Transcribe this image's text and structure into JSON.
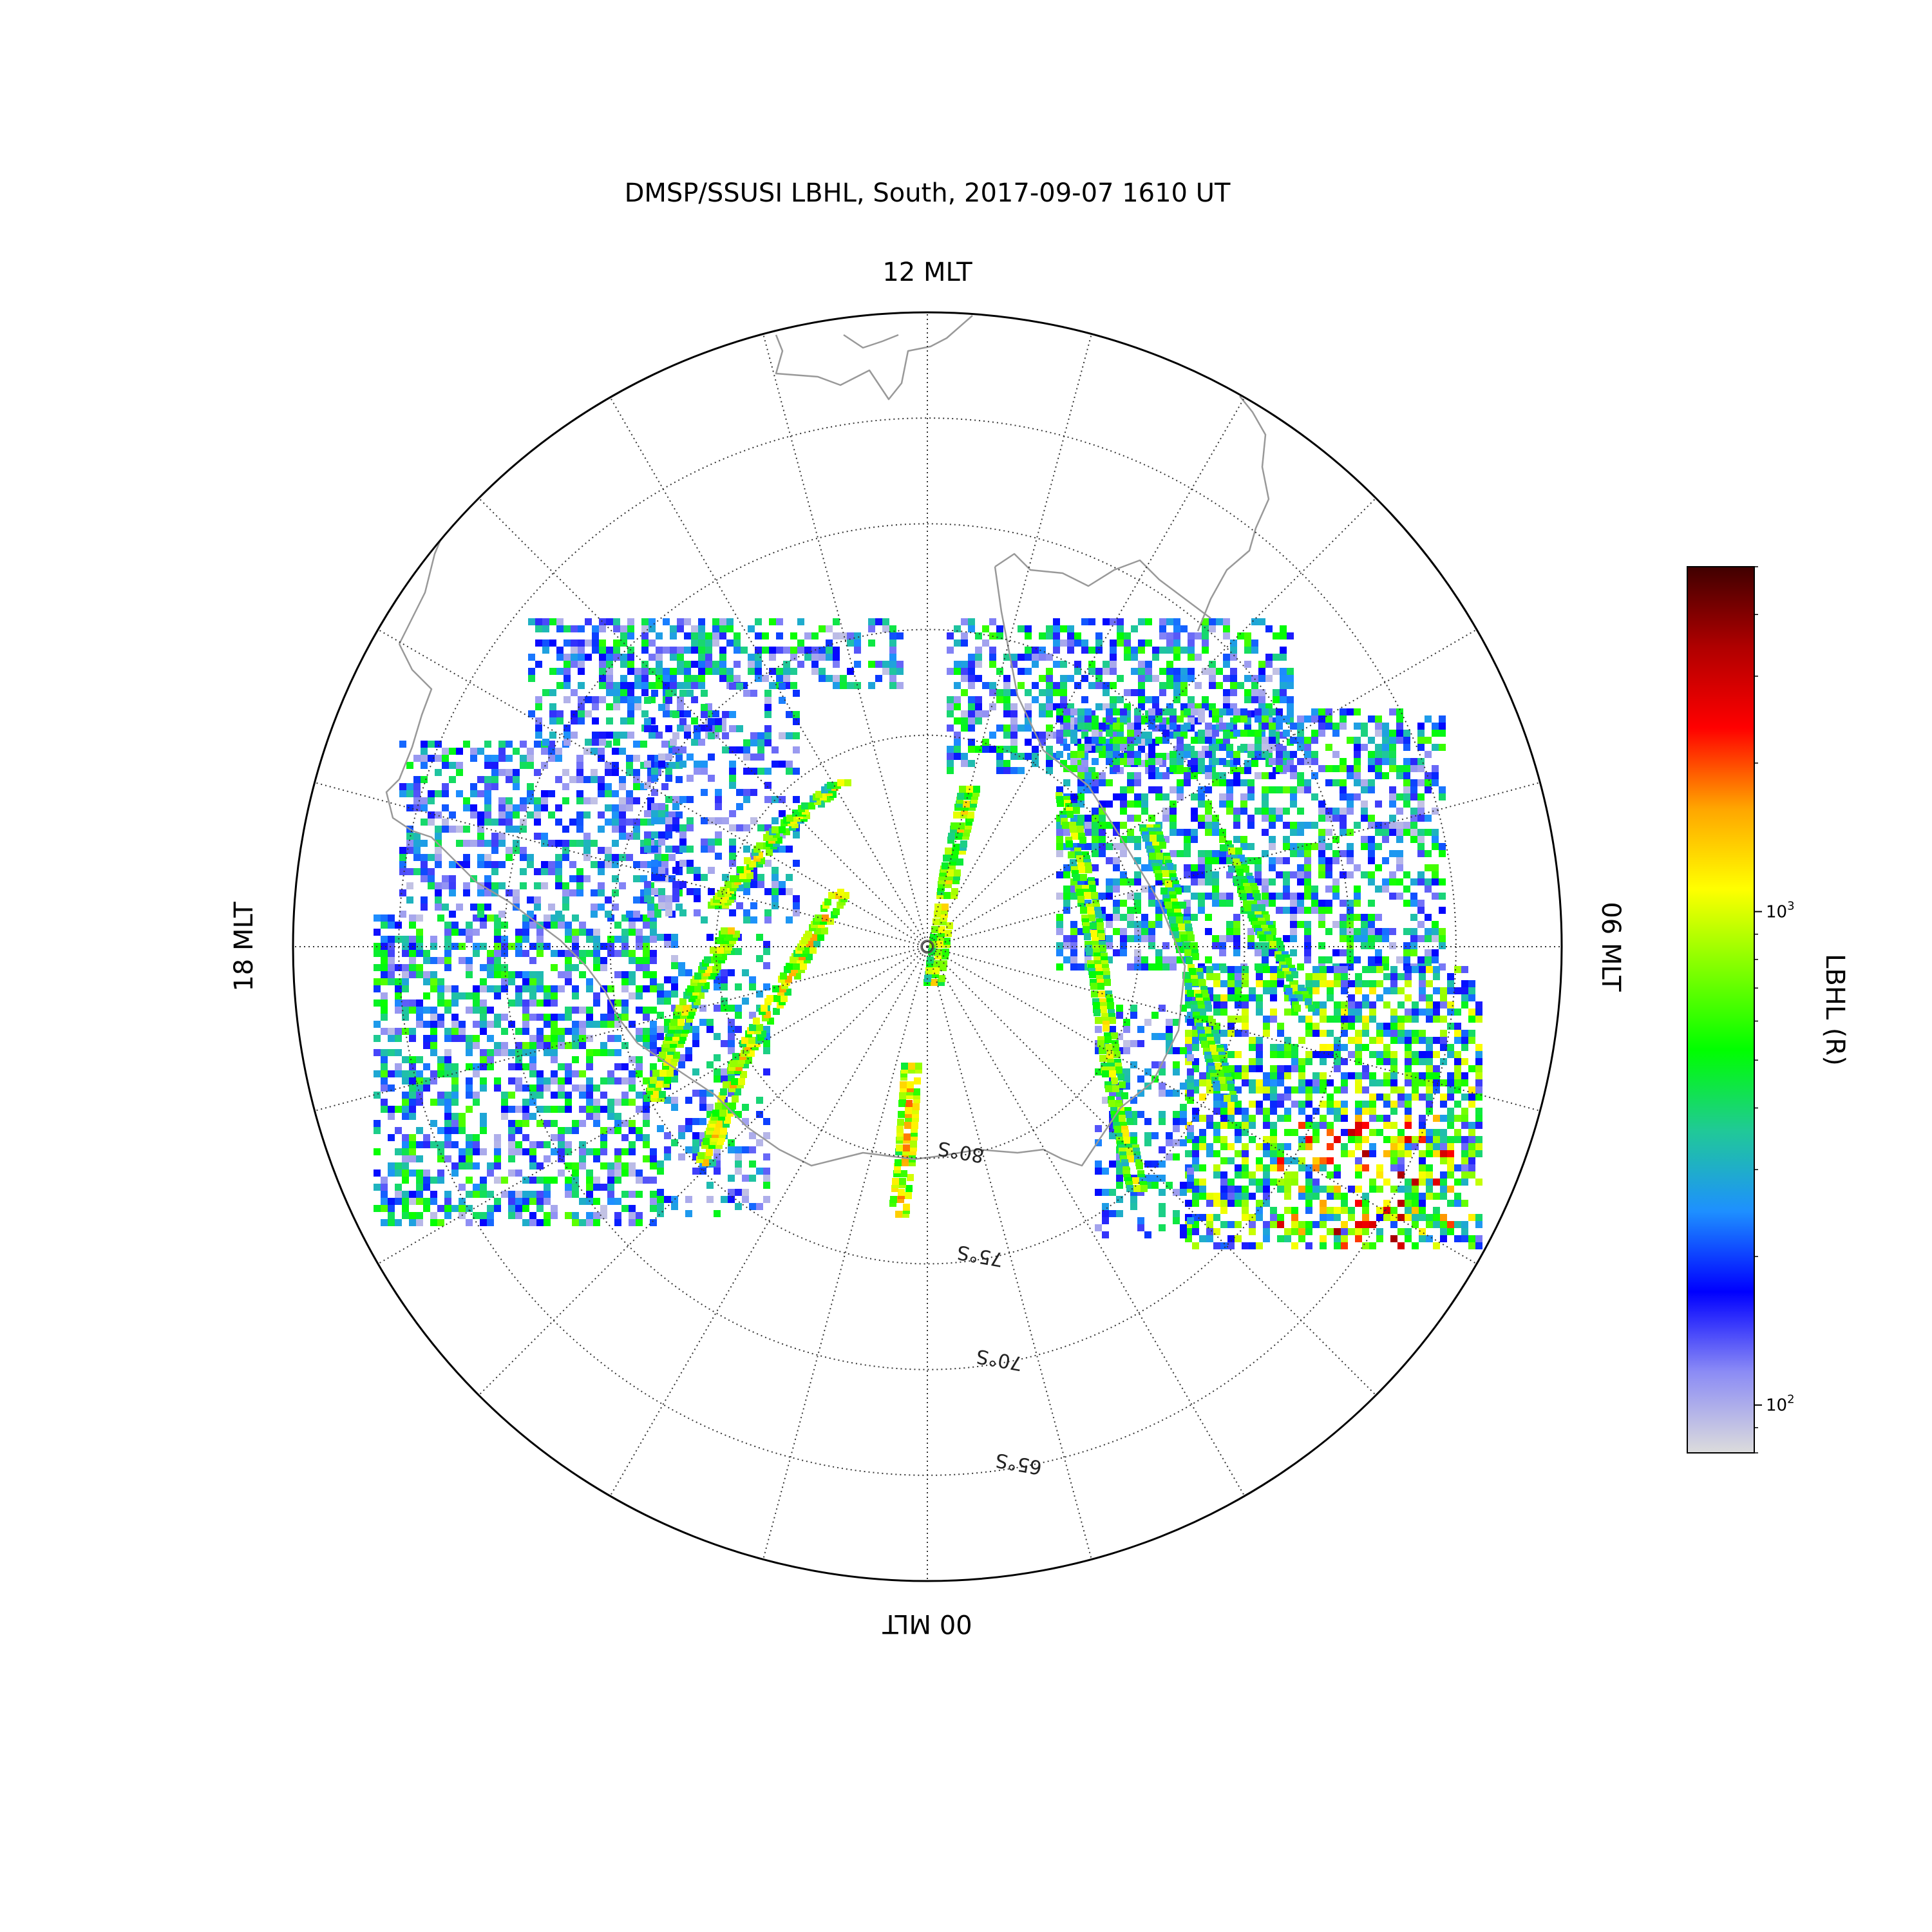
{
  "chart_data": {
    "type": "heatmap",
    "projection": "polar-stereographic-south",
    "title": "DMSP/SSUSI LBHL, South, 2017-09-07 1610 UT",
    "mlt_labels": {
      "top": "12 MLT",
      "left": "18 MLT",
      "right": "06 MLT",
      "bottom": "00 MLT"
    },
    "latitude_circles": [
      {
        "lat": -80,
        "label": "80°S"
      },
      {
        "lat": -75,
        "label": "75°S"
      },
      {
        "lat": -70,
        "label": "70°S"
      },
      {
        "lat": -65,
        "label": "65°S"
      }
    ],
    "outer_boundary_lat": -60,
    "meridian_spacing_deg": 15,
    "grid": true,
    "grid_style": "dotted",
    "coastlines": true,
    "colorbar": {
      "label": "LBHL (R)",
      "scale": "log",
      "range": [
        80,
        5000
      ],
      "ticks": [
        {
          "value": 100,
          "base": "10",
          "exp": "2"
        },
        {
          "value": 1000,
          "base": "10",
          "exp": "3"
        }
      ],
      "colormap": [
        "#dcdcdc",
        "#8c8cf5",
        "#0000ff",
        "#1e90ff",
        "#20c997",
        "#00ff00",
        "#7fff00",
        "#ffff00",
        "#ffa500",
        "#ff0000",
        "#b00000",
        "#400000"
      ]
    },
    "swaths": [
      {
        "mlt_range": [
          15.0,
          21.6
        ],
        "lat_range": [
          -76,
          -68
        ],
        "typical_intensity": [
          100,
          400
        ],
        "note_intensity_max": 700
      },
      {
        "mlt_range": [
          20.5,
          23.6
        ],
        "lat_range": [
          -86,
          -71
        ],
        "arc_peak_intensity": 1800
      },
      {
        "mlt_range": [
          0.0,
          0.3
        ],
        "lat_range": [
          -90,
          -80
        ],
        "arc_peak_intensity": 2000
      },
      {
        "mlt_range": [
          0.0,
          6.0
        ],
        "lat_range": [
          -80,
          -70
        ],
        "typical_intensity": [
          200,
          1500
        ],
        "note_intensity_max": 2000
      },
      {
        "mlt_range": [
          2.5,
          9.0
        ],
        "lat_range": [
          -84,
          -68
        ],
        "typical_intensity": [
          100,
          600
        ]
      }
    ]
  }
}
